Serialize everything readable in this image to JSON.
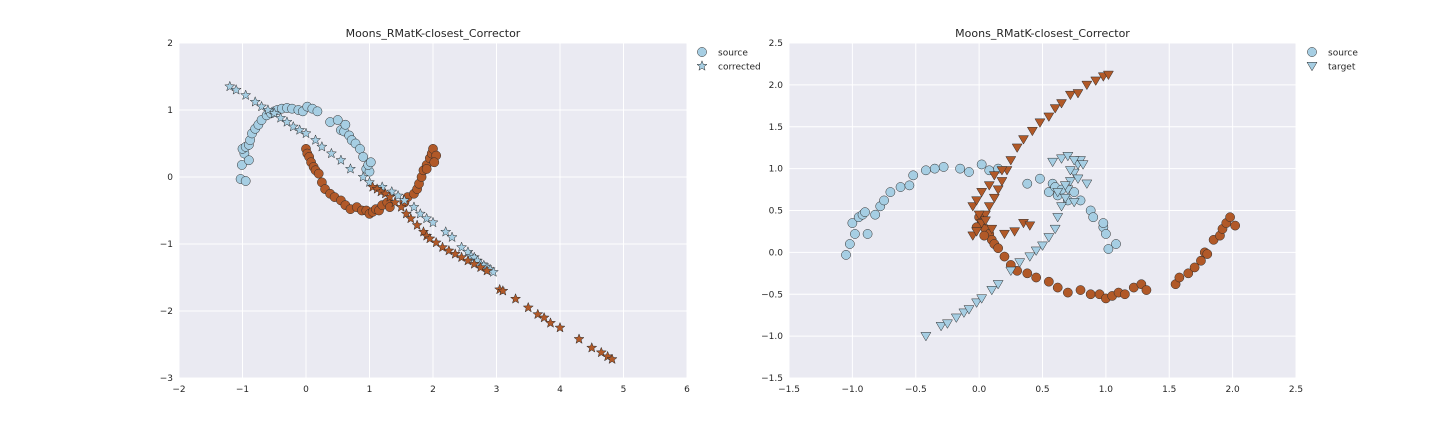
{
  "chart_data": [
    {
      "type": "scatter",
      "title": "Moons_RMatK-closest_Corrector",
      "xlim": [
        -2,
        6
      ],
      "ylim": [
        -3,
        2
      ],
      "xticks": [
        -2,
        -1,
        0,
        1,
        2,
        3,
        4,
        5,
        6
      ],
      "yticks": [
        -3,
        -2,
        -1,
        0,
        1,
        2
      ],
      "xtick_labels": [
        "−2",
        "−1",
        "0",
        "1",
        "2",
        "3",
        "4",
        "5",
        "6"
      ],
      "ytick_labels": [
        "−3",
        "−2",
        "−1",
        "0",
        "1",
        "2"
      ],
      "grid": true,
      "legend": {
        "placement": "outside-top-right",
        "entries": [
          {
            "label": "source",
            "marker": "circle"
          },
          {
            "label": "corrected",
            "marker": "star"
          }
        ]
      },
      "colors": {
        "class_a": "#a6cee3",
        "class_b": "#b15928",
        "background": "#eaeaf2",
        "grid": "#ffffff"
      },
      "series": [
        {
          "legend": "source",
          "marker": "circle",
          "class": "a",
          "x": [
            -1.03,
            -1.01,
            -0.97,
            -1.0,
            -0.95,
            -0.9,
            -0.88,
            -0.85,
            -0.8,
            -0.75,
            -0.7,
            -0.62,
            -0.55,
            -0.5,
            -0.45,
            -0.38,
            -0.3,
            -0.22,
            -0.12,
            -0.05,
            0.02,
            0.1,
            0.18,
            0.38,
            0.5,
            0.55,
            0.6,
            0.62,
            0.68,
            0.72,
            0.78,
            0.85,
            0.9,
            0.95,
            1.0,
            0.98,
            1.02,
            -0.95,
            -0.9
          ],
          "y": [
            -0.03,
            0.18,
            0.35,
            0.42,
            0.45,
            0.48,
            0.55,
            0.65,
            0.72,
            0.78,
            0.85,
            0.92,
            0.95,
            0.98,
            1.0,
            1.02,
            1.03,
            1.02,
            1.0,
            0.98,
            1.05,
            1.02,
            0.98,
            0.82,
            0.85,
            0.7,
            0.68,
            0.78,
            0.62,
            0.55,
            0.5,
            0.42,
            0.3,
            0.12,
            0.08,
            0.18,
            0.22,
            -0.06,
            0.25
          ]
        },
        {
          "legend": "source",
          "marker": "circle",
          "class": "b",
          "x": [
            0.0,
            0.02,
            0.05,
            0.08,
            0.12,
            0.15,
            0.2,
            0.25,
            0.3,
            0.38,
            0.45,
            0.55,
            0.62,
            0.7,
            0.8,
            0.88,
            0.95,
            1.0,
            1.05,
            1.1,
            1.15,
            1.2,
            1.28,
            1.32,
            1.55,
            1.6,
            1.7,
            1.75,
            1.78,
            1.82,
            1.85,
            1.9,
            1.95,
            1.98,
            2.0,
            2.05,
            2.02,
            1.9
          ],
          "y": [
            0.42,
            0.35,
            0.3,
            0.22,
            0.15,
            0.1,
            0.05,
            -0.08,
            -0.18,
            -0.25,
            -0.3,
            -0.35,
            -0.42,
            -0.48,
            -0.45,
            -0.5,
            -0.5,
            -0.55,
            -0.52,
            -0.48,
            -0.5,
            -0.42,
            -0.38,
            -0.45,
            -0.38,
            -0.3,
            -0.25,
            -0.18,
            -0.1,
            0.0,
            0.1,
            0.18,
            0.28,
            0.35,
            0.42,
            0.32,
            0.22,
            0.12
          ]
        },
        {
          "legend": "corrected",
          "marker": "star",
          "class": "a",
          "x": [
            -1.2,
            -1.1,
            -0.95,
            -0.8,
            -0.7,
            -0.6,
            -0.5,
            -0.4,
            -0.3,
            -0.2,
            -0.1,
            0.0,
            0.15,
            0.25,
            0.4,
            0.55,
            0.7,
            0.9,
            1.0,
            1.2,
            1.35,
            1.45,
            1.55,
            1.7,
            1.8,
            1.9,
            2.0,
            2.2,
            2.3,
            2.45,
            2.55,
            2.6,
            2.65,
            2.7,
            2.75,
            2.8,
            2.85,
            2.9,
            2.95
          ],
          "y": [
            1.35,
            1.3,
            1.22,
            1.12,
            1.05,
            1.0,
            0.95,
            0.88,
            0.82,
            0.75,
            0.7,
            0.65,
            0.55,
            0.45,
            0.35,
            0.25,
            0.12,
            0.0,
            -0.08,
            -0.15,
            -0.22,
            -0.28,
            -0.35,
            -0.45,
            -0.55,
            -0.62,
            -0.68,
            -0.82,
            -0.9,
            -1.05,
            -1.12,
            -1.18,
            -1.2,
            -1.25,
            -1.3,
            -1.32,
            -1.35,
            -1.38,
            -1.42
          ]
        },
        {
          "legend": "corrected",
          "marker": "star",
          "class": "b",
          "x": [
            1.05,
            1.12,
            1.18,
            1.25,
            1.32,
            1.4,
            1.5,
            1.58,
            1.65,
            1.75,
            1.85,
            1.9,
            1.95,
            2.05,
            2.15,
            2.25,
            2.35,
            2.45,
            2.55,
            2.65,
            2.75,
            2.85,
            3.05,
            3.1,
            3.3,
            3.5,
            3.65,
            3.75,
            3.85,
            4.0,
            4.3,
            4.5,
            4.65,
            4.75,
            4.82
          ],
          "y": [
            -0.15,
            -0.18,
            -0.22,
            -0.25,
            -0.3,
            -0.38,
            -0.45,
            -0.55,
            -0.62,
            -0.72,
            -0.82,
            -0.88,
            -0.92,
            -0.98,
            -1.05,
            -1.1,
            -1.15,
            -1.2,
            -1.25,
            -1.3,
            -1.35,
            -1.4,
            -1.68,
            -1.7,
            -1.82,
            -1.95,
            -2.05,
            -2.1,
            -2.18,
            -2.25,
            -2.42,
            -2.55,
            -2.62,
            -2.68,
            -2.72
          ]
        }
      ]
    },
    {
      "type": "scatter",
      "title": "Moons_RMatK-closest_Corrector",
      "xlim": [
        -1.5,
        2.5
      ],
      "ylim": [
        -1.5,
        2.5
      ],
      "xticks": [
        -1.5,
        -1.0,
        -0.5,
        0.0,
        0.5,
        1.0,
        1.5,
        2.0,
        2.5
      ],
      "yticks": [
        -1.5,
        -1.0,
        -0.5,
        0.0,
        0.5,
        1.0,
        1.5,
        2.0,
        2.5
      ],
      "xtick_labels": [
        "−1.5",
        "−1.0",
        "−0.5",
        "0.0",
        "0.5",
        "1.0",
        "1.5",
        "2.0",
        "2.5"
      ],
      "ytick_labels": [
        "−1.5",
        "−1.0",
        "−0.5",
        "0.0",
        "0.5",
        "1.0",
        "1.5",
        "2.0",
        "2.5"
      ],
      "grid": true,
      "legend": {
        "placement": "outside-top-right",
        "entries": [
          {
            "label": "source",
            "marker": "circle"
          },
          {
            "label": "target",
            "marker": "triangle-down"
          }
        ]
      },
      "colors": {
        "class_a": "#a6cee3",
        "class_b": "#b15928",
        "background": "#eaeaf2",
        "grid": "#ffffff"
      },
      "series": [
        {
          "legend": "source",
          "marker": "circle",
          "class": "a",
          "x": [
            -1.05,
            -1.02,
            -0.98,
            -1.0,
            -0.95,
            -0.92,
            -0.9,
            -0.88,
            -0.82,
            -0.78,
            -0.75,
            -0.7,
            -0.62,
            -0.55,
            -0.52,
            -0.42,
            -0.35,
            -0.28,
            -0.15,
            -0.08,
            0.02,
            0.08,
            0.15,
            0.38,
            0.48,
            0.55,
            0.58,
            0.6,
            0.62,
            0.65,
            0.7,
            0.75,
            0.8,
            0.88,
            0.9,
            0.98,
            1.0,
            1.02,
            1.08,
            0.98
          ],
          "y": [
            -0.03,
            0.1,
            0.22,
            0.35,
            0.42,
            0.45,
            0.48,
            0.22,
            0.45,
            0.55,
            0.62,
            0.72,
            0.78,
            0.8,
            0.92,
            0.98,
            1.0,
            1.02,
            1.0,
            0.96,
            1.05,
            0.98,
            1.0,
            0.82,
            0.88,
            0.72,
            0.82,
            0.78,
            0.68,
            0.75,
            0.62,
            0.72,
            0.62,
            0.5,
            0.42,
            0.3,
            0.22,
            0.04,
            0.1,
            0.35
          ]
        },
        {
          "legend": "source",
          "marker": "circle",
          "class": "b",
          "x": [
            0.0,
            0.02,
            0.05,
            0.08,
            0.1,
            0.12,
            0.15,
            0.2,
            0.25,
            0.3,
            0.38,
            0.45,
            0.55,
            0.62,
            0.7,
            0.8,
            0.88,
            0.95,
            1.0,
            1.05,
            1.1,
            1.15,
            1.22,
            1.28,
            1.32,
            1.55,
            1.58,
            1.65,
            1.7,
            1.75,
            1.78,
            1.8,
            1.85,
            1.9,
            1.92,
            1.95,
            1.98,
            2.02,
            -0.02,
            0.04
          ],
          "y": [
            0.42,
            0.35,
            0.28,
            0.22,
            0.15,
            0.1,
            0.05,
            -0.05,
            -0.15,
            -0.22,
            -0.25,
            -0.3,
            -0.35,
            -0.42,
            -0.48,
            -0.45,
            -0.5,
            -0.5,
            -0.55,
            -0.52,
            -0.48,
            -0.5,
            -0.42,
            -0.38,
            -0.45,
            -0.38,
            -0.3,
            -0.25,
            -0.18,
            -0.1,
            0.0,
            -0.02,
            0.15,
            0.2,
            0.28,
            0.35,
            0.42,
            0.32,
            0.3,
            0.2
          ]
        },
        {
          "legend": "target",
          "marker": "triangle-down",
          "class": "a",
          "x": [
            -0.42,
            -0.3,
            -0.25,
            -0.18,
            -0.12,
            -0.08,
            -0.02,
            0.02,
            0.1,
            0.15,
            0.25,
            0.32,
            0.4,
            0.45,
            0.5,
            0.55,
            0.6,
            0.62,
            0.65,
            0.68,
            0.7,
            0.72,
            0.75,
            0.78,
            0.8,
            0.82,
            0.65,
            0.58,
            0.7,
            0.75,
            0.72,
            0.78,
            0.68,
            0.62,
            0.85,
            0.75
          ],
          "y": [
            -1.0,
            -0.88,
            -0.85,
            -0.78,
            -0.72,
            -0.68,
            -0.6,
            -0.55,
            -0.45,
            -0.38,
            -0.22,
            -0.12,
            -0.05,
            0.02,
            0.08,
            0.18,
            0.28,
            0.42,
            0.55,
            0.65,
            0.75,
            0.85,
            0.95,
            1.05,
            1.1,
            1.05,
            1.12,
            1.08,
            1.15,
            1.1,
            0.98,
            0.88,
            0.8,
            0.72,
            0.82,
            0.6
          ]
        },
        {
          "legend": "target",
          "marker": "triangle-down",
          "class": "b",
          "x": [
            -0.05,
            -0.02,
            0.02,
            0.05,
            0.08,
            0.12,
            0.15,
            0.18,
            0.22,
            0.25,
            0.3,
            0.35,
            0.42,
            0.48,
            0.55,
            0.6,
            0.65,
            0.72,
            0.78,
            0.85,
            0.92,
            0.98,
            1.02,
            -0.05,
            0.0,
            0.05,
            0.1,
            0.2,
            0.28,
            0.35,
            0.4,
            0.02,
            -0.02,
            0.08,
            0.12,
            0.18
          ],
          "y": [
            0.2,
            0.25,
            0.35,
            0.45,
            0.55,
            0.65,
            0.75,
            0.85,
            0.98,
            1.1,
            1.25,
            1.35,
            1.45,
            1.55,
            1.62,
            1.72,
            1.78,
            1.88,
            1.9,
            2.0,
            2.05,
            2.1,
            2.12,
            0.55,
            0.45,
            0.38,
            0.28,
            0.22,
            0.25,
            0.35,
            0.32,
            0.72,
            0.62,
            0.8,
            0.92,
            0.98
          ]
        }
      ]
    }
  ]
}
